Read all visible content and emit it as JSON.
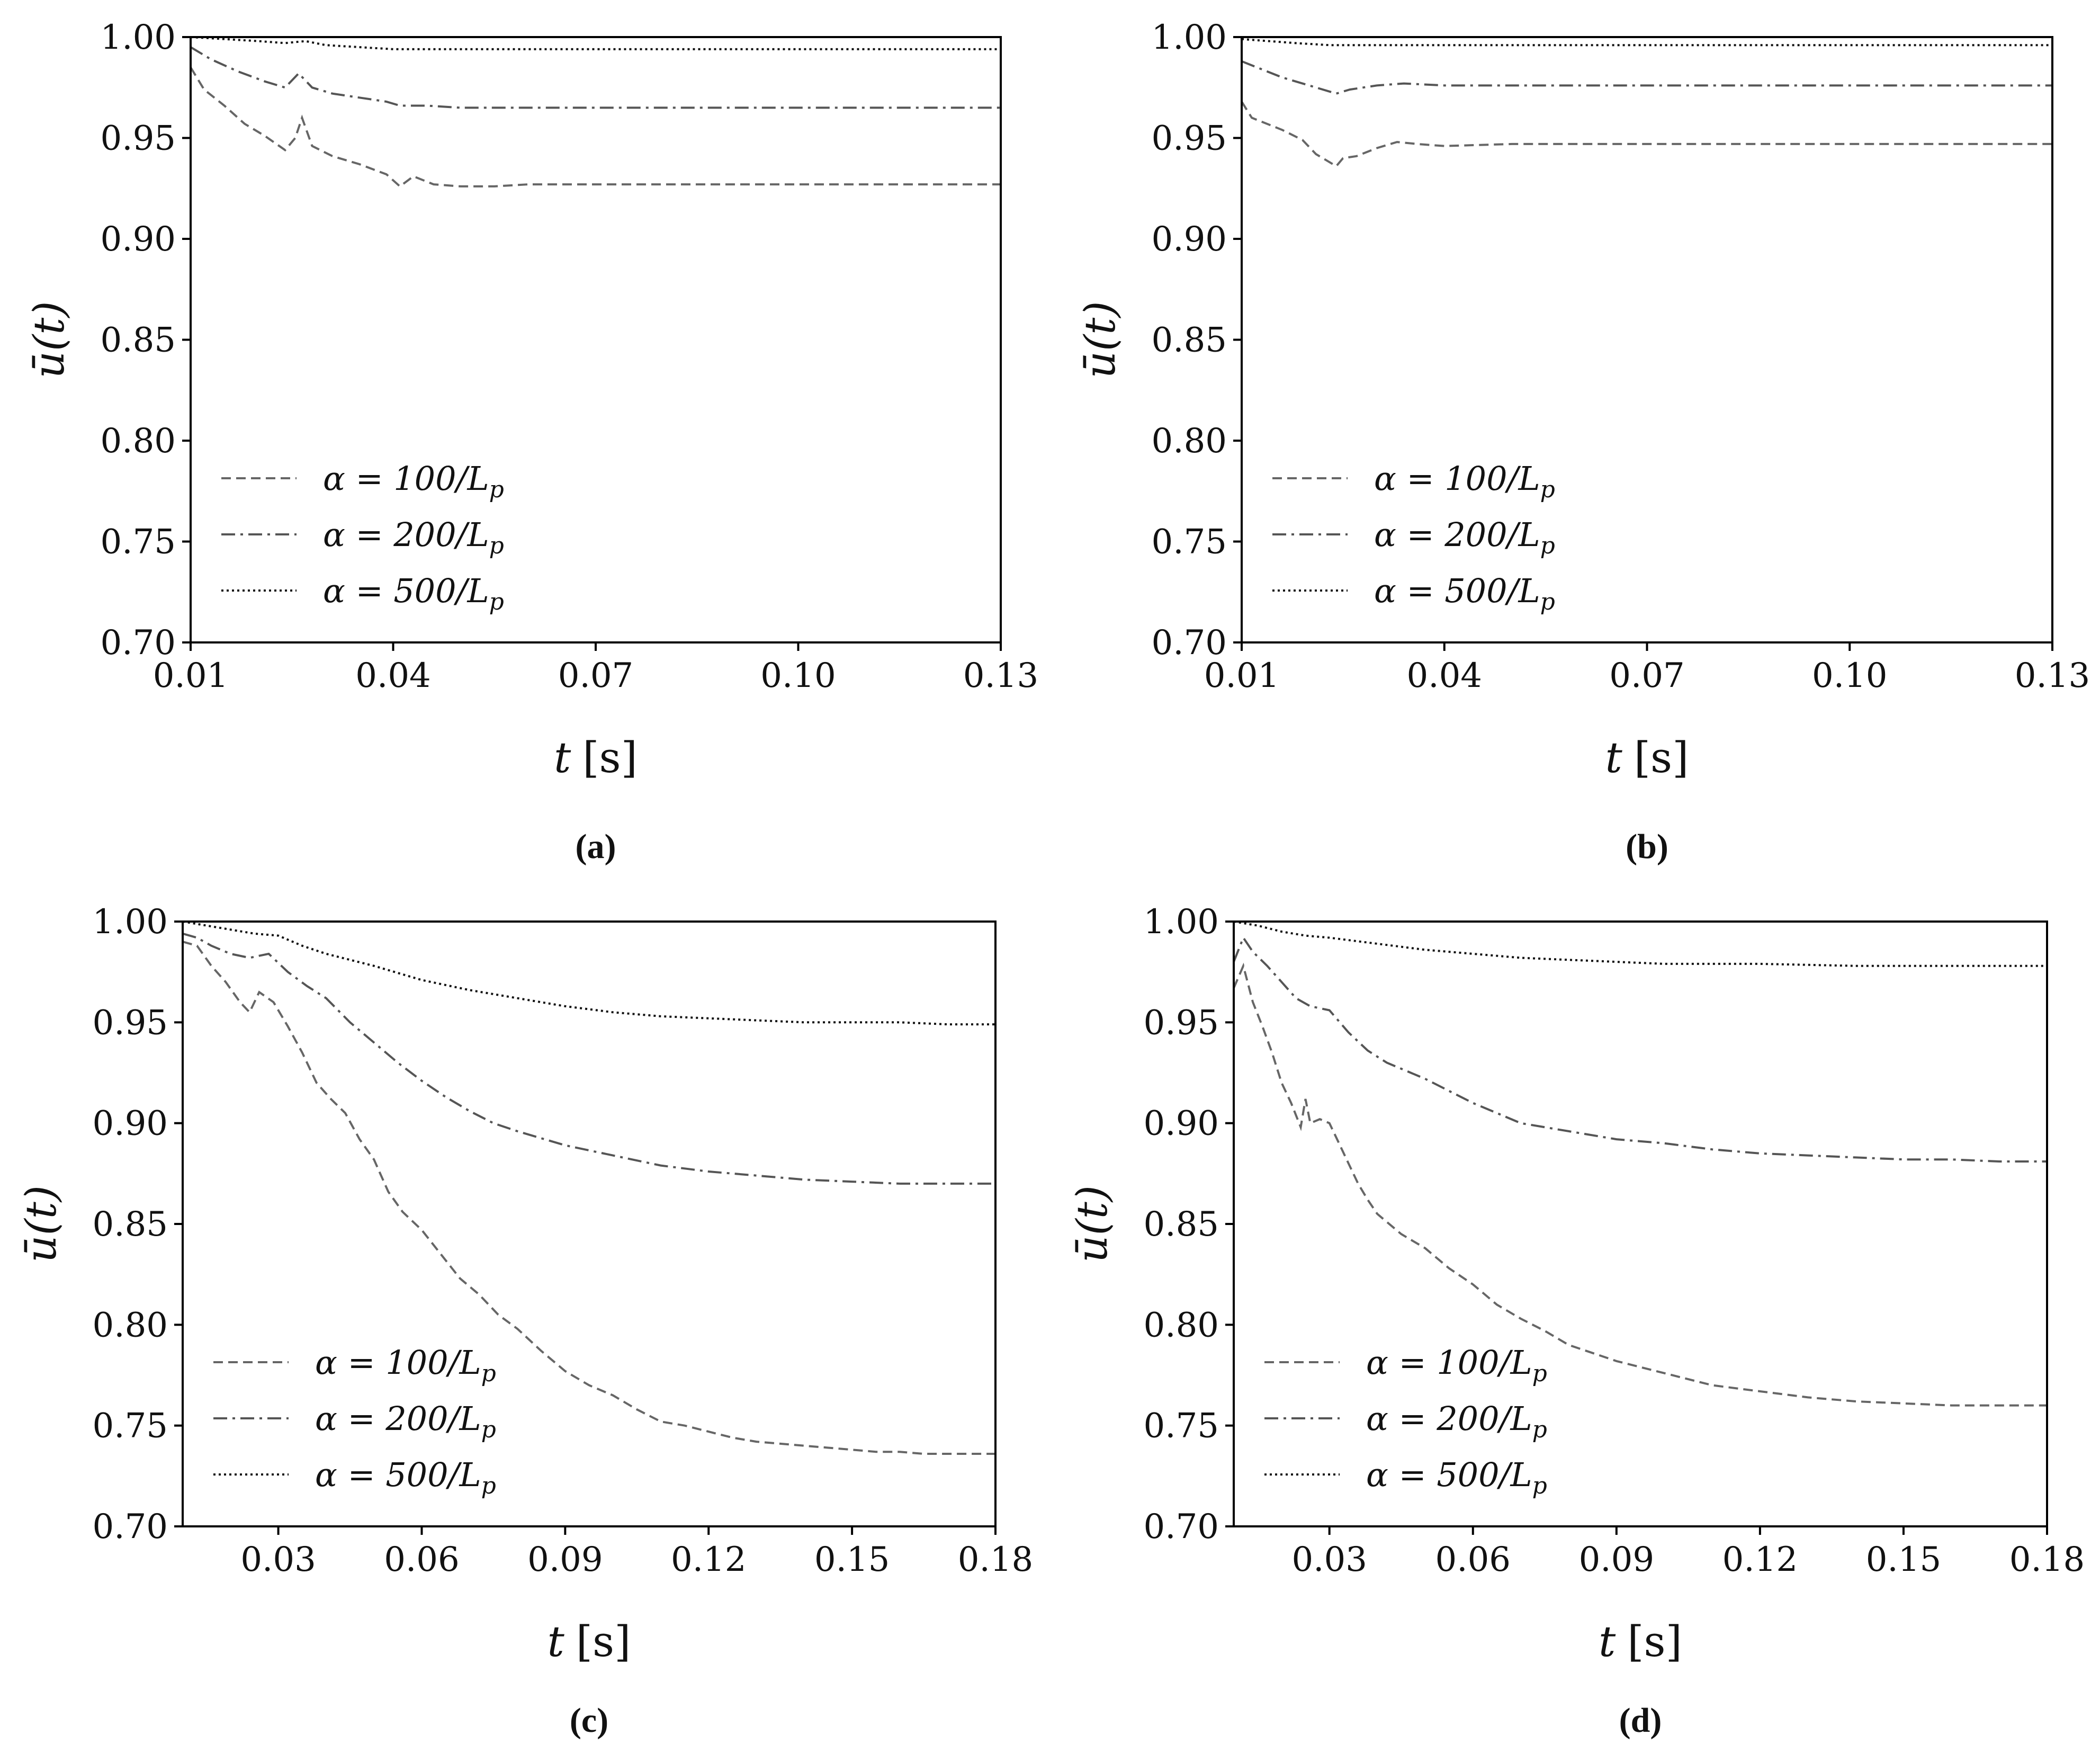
{
  "chart_data": [
    {
      "panel": "a",
      "caption": "(a)",
      "type": "line",
      "xlabel_var": "t",
      "xlabel_unit": "[s]",
      "ylabel": "ū(t)",
      "xlim": [
        0.01,
        0.13
      ],
      "ylim": [
        0.7,
        1.0
      ],
      "xticks": [
        "0.01",
        "0.04",
        "0.07",
        "0.10",
        "0.13"
      ],
      "yticks": [
        "0.70",
        "0.75",
        "0.80",
        "0.85",
        "0.90",
        "0.95",
        "1.00"
      ],
      "legend_position": "lower-left",
      "series": [
        {
          "name": "α = 100/Lp",
          "label": "α = 100/L",
          "sub": "p",
          "style": "dashed",
          "color": "#666666",
          "x": [
            0.01,
            0.012,
            0.015,
            0.018,
            0.021,
            0.024,
            0.0255,
            0.0265,
            0.028,
            0.031,
            0.035,
            0.039,
            0.041,
            0.043,
            0.046,
            0.05,
            0.055,
            0.06,
            0.08,
            0.1,
            0.13
          ],
          "y": [
            0.985,
            0.974,
            0.966,
            0.957,
            0.951,
            0.944,
            0.95,
            0.96,
            0.946,
            0.941,
            0.937,
            0.932,
            0.926,
            0.931,
            0.927,
            0.926,
            0.926,
            0.927,
            0.927,
            0.927,
            0.927
          ]
        },
        {
          "name": "α = 200/Lp",
          "label": "α = 200/L",
          "sub": "p",
          "style": "dashdot",
          "color": "#555555",
          "x": [
            0.01,
            0.013,
            0.017,
            0.021,
            0.024,
            0.026,
            0.028,
            0.031,
            0.035,
            0.039,
            0.041,
            0.045,
            0.05,
            0.06,
            0.08,
            0.1,
            0.13
          ],
          "y": [
            0.995,
            0.989,
            0.983,
            0.978,
            0.975,
            0.982,
            0.975,
            0.972,
            0.97,
            0.968,
            0.966,
            0.966,
            0.965,
            0.965,
            0.965,
            0.965,
            0.965
          ]
        },
        {
          "name": "α = 500/Lp",
          "label": "α = 500/L",
          "sub": "p",
          "style": "dotted",
          "color": "#111111",
          "x": [
            0.01,
            0.015,
            0.02,
            0.024,
            0.027,
            0.03,
            0.035,
            0.04,
            0.05,
            0.07,
            0.1,
            0.13
          ],
          "y": [
            1.0,
            0.999,
            0.998,
            0.997,
            0.998,
            0.996,
            0.995,
            0.994,
            0.994,
            0.994,
            0.994,
            0.994
          ]
        }
      ]
    },
    {
      "panel": "b",
      "caption": "(b)",
      "type": "line",
      "xlabel_var": "t",
      "xlabel_unit": "[s]",
      "ylabel": "ū(t)",
      "xlim": [
        0.01,
        0.13
      ],
      "ylim": [
        0.7,
        1.0
      ],
      "xticks": [
        "0.01",
        "0.04",
        "0.07",
        "0.10",
        "0.13"
      ],
      "yticks": [
        "0.70",
        "0.75",
        "0.80",
        "0.85",
        "0.90",
        "0.95",
        "1.00"
      ],
      "legend_position": "lower-left",
      "series": [
        {
          "name": "α = 100/Lp",
          "label": "α = 100/L",
          "sub": "p",
          "style": "dashed",
          "color": "#666666",
          "x": [
            0.01,
            0.0115,
            0.013,
            0.016,
            0.019,
            0.021,
            0.023,
            0.024,
            0.025,
            0.027,
            0.03,
            0.033,
            0.036,
            0.04,
            0.05,
            0.07,
            0.1,
            0.13
          ],
          "y": [
            0.968,
            0.96,
            0.958,
            0.954,
            0.949,
            0.942,
            0.938,
            0.936,
            0.94,
            0.941,
            0.945,
            0.948,
            0.947,
            0.946,
            0.947,
            0.947,
            0.947,
            0.947
          ]
        },
        {
          "name": "α = 200/Lp",
          "label": "α = 200/L",
          "sub": "p",
          "style": "dashdot",
          "color": "#555555",
          "x": [
            0.01,
            0.013,
            0.016,
            0.02,
            0.024,
            0.026,
            0.03,
            0.034,
            0.04,
            0.05,
            0.07,
            0.1,
            0.13
          ],
          "y": [
            0.988,
            0.984,
            0.98,
            0.976,
            0.972,
            0.974,
            0.976,
            0.977,
            0.976,
            0.976,
            0.976,
            0.976,
            0.976
          ]
        },
        {
          "name": "α = 500/Lp",
          "label": "α = 500/L",
          "sub": "p",
          "style": "dotted",
          "color": "#111111",
          "x": [
            0.01,
            0.014,
            0.018,
            0.023,
            0.028,
            0.035,
            0.05,
            0.08,
            0.1,
            0.13
          ],
          "y": [
            0.999,
            0.998,
            0.997,
            0.996,
            0.996,
            0.996,
            0.996,
            0.996,
            0.996,
            0.996
          ]
        }
      ]
    },
    {
      "panel": "c",
      "caption": "(c)",
      "type": "line",
      "xlabel_var": "t",
      "xlabel_unit": "[s]",
      "ylabel": "ū(t)",
      "xlim": [
        0.01,
        0.18
      ],
      "ylim": [
        0.7,
        1.0
      ],
      "xticks": [
        "0.03",
        "0.06",
        "0.09",
        "0.12",
        "0.15",
        "0.18"
      ],
      "yticks": [
        "0.70",
        "0.75",
        "0.80",
        "0.85",
        "0.90",
        "0.95",
        "1.00"
      ],
      "legend_position": "lower-left",
      "series": [
        {
          "name": "α = 100/Lp",
          "label": "α = 100/L",
          "sub": "p",
          "style": "dashed",
          "color": "#666666",
          "x": [
            0.01,
            0.013,
            0.016,
            0.019,
            0.022,
            0.024,
            0.026,
            0.029,
            0.032,
            0.035,
            0.038,
            0.041,
            0.044,
            0.047,
            0.05,
            0.053,
            0.056,
            0.06,
            0.064,
            0.068,
            0.072,
            0.076,
            0.08,
            0.085,
            0.09,
            0.095,
            0.1,
            0.105,
            0.11,
            0.115,
            0.12,
            0.125,
            0.13,
            0.135,
            0.14,
            0.145,
            0.15,
            0.155,
            0.16,
            0.165,
            0.17,
            0.175,
            0.18
          ],
          "y": [
            0.99,
            0.988,
            0.978,
            0.97,
            0.96,
            0.955,
            0.965,
            0.96,
            0.948,
            0.935,
            0.92,
            0.912,
            0.905,
            0.892,
            0.882,
            0.866,
            0.856,
            0.847,
            0.835,
            0.823,
            0.815,
            0.805,
            0.798,
            0.787,
            0.777,
            0.77,
            0.765,
            0.758,
            0.752,
            0.75,
            0.747,
            0.744,
            0.742,
            0.741,
            0.74,
            0.739,
            0.738,
            0.737,
            0.737,
            0.736,
            0.736,
            0.736,
            0.736
          ]
        },
        {
          "name": "α = 200/Lp",
          "label": "α = 200/L",
          "sub": "p",
          "style": "dashdot",
          "color": "#555555",
          "x": [
            0.01,
            0.013,
            0.016,
            0.02,
            0.024,
            0.028,
            0.032,
            0.036,
            0.04,
            0.045,
            0.05,
            0.055,
            0.06,
            0.065,
            0.07,
            0.075,
            0.08,
            0.09,
            0.1,
            0.11,
            0.12,
            0.13,
            0.14,
            0.15,
            0.16,
            0.17,
            0.18
          ],
          "y": [
            0.994,
            0.992,
            0.988,
            0.984,
            0.982,
            0.984,
            0.975,
            0.968,
            0.962,
            0.95,
            0.94,
            0.93,
            0.921,
            0.913,
            0.906,
            0.9,
            0.896,
            0.889,
            0.884,
            0.879,
            0.876,
            0.874,
            0.872,
            0.871,
            0.87,
            0.87,
            0.87
          ]
        },
        {
          "name": "α = 500/Lp",
          "label": "α = 500/L",
          "sub": "p",
          "style": "dotted",
          "color": "#111111",
          "x": [
            0.01,
            0.015,
            0.02,
            0.025,
            0.03,
            0.035,
            0.04,
            0.05,
            0.06,
            0.07,
            0.08,
            0.09,
            0.1,
            0.11,
            0.12,
            0.13,
            0.14,
            0.15,
            0.16,
            0.17,
            0.18
          ],
          "y": [
            1.0,
            0.998,
            0.996,
            0.994,
            0.993,
            0.988,
            0.984,
            0.978,
            0.971,
            0.966,
            0.962,
            0.958,
            0.955,
            0.953,
            0.952,
            0.951,
            0.95,
            0.95,
            0.95,
            0.949,
            0.949
          ]
        }
      ]
    },
    {
      "panel": "d",
      "caption": "(d)",
      "type": "line",
      "xlabel_var": "t",
      "xlabel_unit": "[s]",
      "ylabel": "ū(t)",
      "xlim": [
        0.01,
        0.18
      ],
      "ylim": [
        0.7,
        1.0
      ],
      "xticks": [
        "0.03",
        "0.06",
        "0.09",
        "0.12",
        "0.15",
        "0.18"
      ],
      "yticks": [
        "0.70",
        "0.75",
        "0.80",
        "0.85",
        "0.90",
        "0.95",
        "1.00"
      ],
      "legend_position": "lower-left",
      "series": [
        {
          "name": "α = 100/Lp",
          "label": "α = 100/L",
          "sub": "p",
          "style": "dashed",
          "color": "#666666",
          "x": [
            0.01,
            0.012,
            0.014,
            0.016,
            0.018,
            0.02,
            0.022,
            0.024,
            0.025,
            0.026,
            0.028,
            0.03,
            0.032,
            0.034,
            0.036,
            0.038,
            0.04,
            0.045,
            0.05,
            0.055,
            0.06,
            0.065,
            0.07,
            0.075,
            0.08,
            0.09,
            0.1,
            0.11,
            0.12,
            0.13,
            0.14,
            0.15,
            0.16,
            0.17,
            0.18
          ],
          "y": [
            0.967,
            0.978,
            0.96,
            0.948,
            0.935,
            0.92,
            0.91,
            0.898,
            0.912,
            0.9,
            0.902,
            0.9,
            0.89,
            0.88,
            0.87,
            0.862,
            0.855,
            0.845,
            0.838,
            0.828,
            0.82,
            0.81,
            0.803,
            0.797,
            0.79,
            0.782,
            0.776,
            0.77,
            0.767,
            0.764,
            0.762,
            0.761,
            0.76,
            0.76,
            0.76
          ]
        },
        {
          "name": "α = 200/Lp",
          "label": "α = 200/L",
          "sub": "p",
          "style": "dashdot",
          "color": "#555555",
          "x": [
            0.01,
            0.012,
            0.014,
            0.017,
            0.02,
            0.023,
            0.026,
            0.03,
            0.034,
            0.038,
            0.042,
            0.046,
            0.05,
            0.055,
            0.06,
            0.065,
            0.07,
            0.08,
            0.09,
            0.1,
            0.11,
            0.12,
            0.13,
            0.14,
            0.15,
            0.16,
            0.17,
            0.18
          ],
          "y": [
            0.98,
            0.992,
            0.985,
            0.978,
            0.97,
            0.962,
            0.958,
            0.956,
            0.945,
            0.936,
            0.93,
            0.926,
            0.922,
            0.916,
            0.91,
            0.905,
            0.9,
            0.896,
            0.892,
            0.89,
            0.887,
            0.885,
            0.884,
            0.883,
            0.882,
            0.882,
            0.881,
            0.881
          ]
        },
        {
          "name": "α = 500/Lp",
          "label": "α = 500/L",
          "sub": "p",
          "style": "dotted",
          "color": "#111111",
          "x": [
            0.01,
            0.015,
            0.02,
            0.025,
            0.03,
            0.04,
            0.05,
            0.06,
            0.07,
            0.08,
            0.09,
            0.1,
            0.12,
            0.14,
            0.16,
            0.18
          ],
          "y": [
            1.0,
            0.998,
            0.995,
            0.993,
            0.992,
            0.989,
            0.986,
            0.984,
            0.982,
            0.981,
            0.98,
            0.979,
            0.979,
            0.978,
            0.978,
            0.978
          ]
        }
      ]
    }
  ]
}
